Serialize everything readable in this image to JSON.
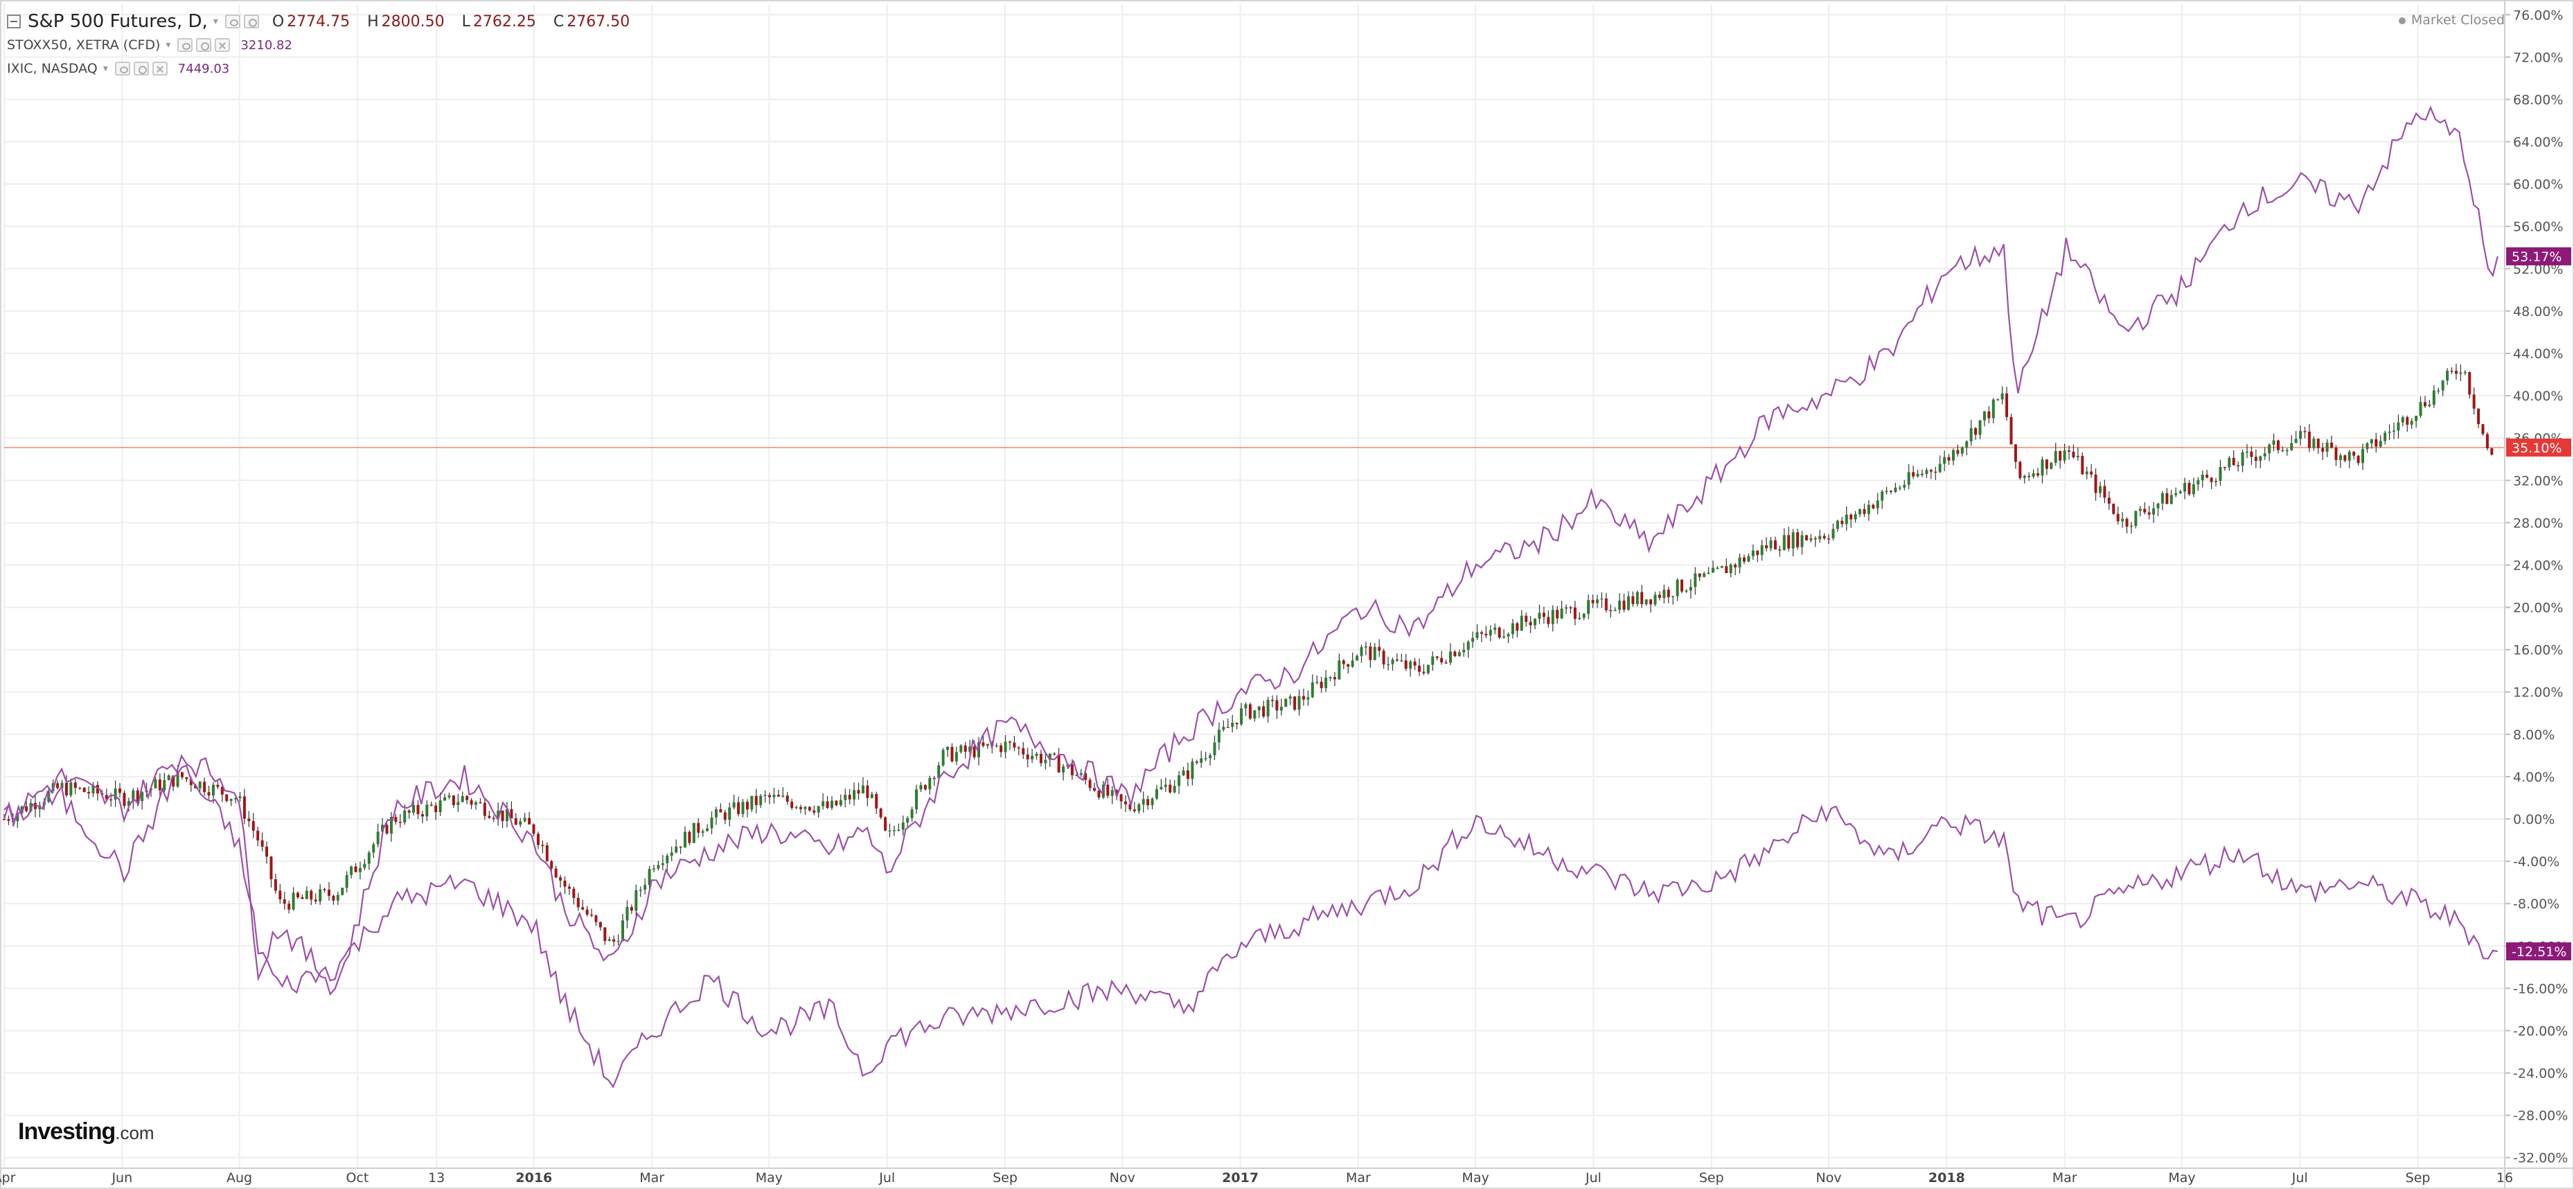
{
  "legend": {
    "main": {
      "symbol": "S&P 500 Futures, D,",
      "o_label": "O",
      "o": "2774.75",
      "h_label": "H",
      "h": "2800.50",
      "l_label": "L",
      "l": "2762.25",
      "c_label": "C",
      "c": "2767.50"
    },
    "sub1": {
      "symbol": "STOXX50, XETRA (CFD)",
      "value": "3210.82"
    },
    "sub2": {
      "symbol": "IXIC, NASDAQ",
      "value": "7449.03"
    }
  },
  "market_status": "Market Closed",
  "logo": {
    "bold": "Investing",
    "suffix": ".com"
  },
  "colors": {
    "up": "#2e7d32",
    "down": "#a31515",
    "compare": "#9c4fa8",
    "ref_line": "#f0a58a",
    "badge_sp": "#e53935",
    "badge_cmp": "#8e1a78",
    "grid": "#eeeeee"
  },
  "chart_data": {
    "type": "line",
    "title": "",
    "x_range": [
      2015.25,
      2018.79
    ],
    "y_range_pct": [
      -33,
      77
    ],
    "x_ticks": [
      {
        "label": "Apr",
        "t": 2015.25
      },
      {
        "label": "Jun",
        "t": 2015.417
      },
      {
        "label": "Aug",
        "t": 2015.583
      },
      {
        "label": "Oct",
        "t": 2015.75
      },
      {
        "label": "13",
        "t": 2015.862
      },
      {
        "label": "2016",
        "t": 2016.0,
        "bold": true
      },
      {
        "label": "Mar",
        "t": 2016.167
      },
      {
        "label": "May",
        "t": 2016.333
      },
      {
        "label": "Jul",
        "t": 2016.5
      },
      {
        "label": "Sep",
        "t": 2016.667
      },
      {
        "label": "Nov",
        "t": 2016.833
      },
      {
        "label": "2017",
        "t": 2017.0,
        "bold": true
      },
      {
        "label": "Mar",
        "t": 2017.167
      },
      {
        "label": "May",
        "t": 2017.333
      },
      {
        "label": "Jul",
        "t": 2017.5
      },
      {
        "label": "Sep",
        "t": 2017.667
      },
      {
        "label": "Nov",
        "t": 2017.833
      },
      {
        "label": "2018",
        "t": 2018.0,
        "bold": true
      },
      {
        "label": "Mar",
        "t": 2018.167
      },
      {
        "label": "May",
        "t": 2018.333
      },
      {
        "label": "Jul",
        "t": 2018.5
      },
      {
        "label": "Sep",
        "t": 2018.667
      },
      {
        "label": "16",
        "t": 2018.79
      }
    ],
    "y_ticks": [
      "76.00%",
      "72.00%",
      "68.00%",
      "64.00%",
      "60.00%",
      "56.00%",
      "52.00%",
      "48.00%",
      "44.00%",
      "40.00%",
      "36.00%",
      "32.00%",
      "28.00%",
      "24.00%",
      "20.00%",
      "16.00%",
      "12.00%",
      "8.00%",
      "4.00%",
      "0.00%",
      "-4.00%",
      "-8.00%",
      "-12.00%",
      "-16.00%",
      "-20.00%",
      "-24.00%",
      "-28.00%",
      "-32.00%"
    ],
    "reference_line_pct": 35.1,
    "badges": [
      {
        "label": "53.17%",
        "value": 53.17,
        "series": "IXIC, NASDAQ"
      },
      {
        "label": "35.10%",
        "value": 35.1,
        "series": "S&P 500 Futures"
      },
      {
        "label": "-12.51%",
        "value": -12.51,
        "series": "STOXX50, XETRA (CFD)"
      }
    ],
    "series": [
      {
        "name": "S&P 500 Futures",
        "style": "candles",
        "x": [
          2015.25,
          2015.33,
          2015.42,
          2015.5,
          2015.58,
          2015.61,
          2015.64,
          2015.72,
          2015.8,
          2015.9,
          2016.0,
          2016.04,
          2016.11,
          2016.17,
          2016.25,
          2016.33,
          2016.42,
          2016.47,
          2016.5,
          2016.58,
          2016.67,
          2016.75,
          2016.84,
          2016.92,
          2017.0,
          2017.08,
          2017.17,
          2017.25,
          2017.33,
          2017.42,
          2017.5,
          2017.58,
          2017.67,
          2017.75,
          2017.83,
          2017.92,
          2018.0,
          2018.08,
          2018.1,
          2018.17,
          2018.25,
          2018.33,
          2018.42,
          2018.5,
          2018.58,
          2018.67,
          2018.73,
          2018.77,
          2018.79
        ],
        "y": [
          0,
          3,
          2,
          4,
          2,
          -2,
          -8,
          -7,
          0,
          2,
          -1,
          -6,
          -12,
          -4,
          0,
          2,
          1,
          3,
          -2,
          6,
          7,
          5,
          1,
          4,
          10,
          11,
          16,
          14,
          17,
          19,
          20,
          21,
          23,
          26,
          27,
          31,
          34,
          40,
          32,
          35,
          28,
          31,
          34,
          36,
          34,
          39,
          43,
          34,
          35.1
        ]
      },
      {
        "name": "IXIC, NASDAQ",
        "style": "line",
        "x": [
          2015.25,
          2015.33,
          2015.42,
          2015.5,
          2015.58,
          2015.61,
          2015.64,
          2015.72,
          2015.8,
          2015.9,
          2016.0,
          2016.04,
          2016.11,
          2016.17,
          2016.25,
          2016.33,
          2016.42,
          2016.47,
          2016.5,
          2016.58,
          2016.67,
          2016.75,
          2016.84,
          2016.92,
          2017.0,
          2017.08,
          2017.17,
          2017.25,
          2017.33,
          2017.42,
          2017.5,
          2017.58,
          2017.67,
          2017.75,
          2017.83,
          2017.92,
          2018.0,
          2018.08,
          2018.1,
          2018.17,
          2018.25,
          2018.33,
          2018.42,
          2018.5,
          2018.58,
          2018.67,
          2018.73,
          2018.77,
          2018.79
        ],
        "y": [
          0,
          4,
          1,
          6,
          3,
          -14,
          -10,
          -16,
          1,
          4,
          -2,
          -8,
          -14,
          -6,
          -3,
          -1,
          -3,
          -1,
          -5,
          4,
          9,
          6,
          2,
          8,
          12,
          14,
          20,
          18,
          24,
          26,
          30,
          26,
          32,
          38,
          40,
          44,
          52,
          54,
          40,
          54,
          46,
          50,
          58,
          60,
          58,
          67,
          64,
          51,
          53.17
        ]
      },
      {
        "name": "STOXX50, XETRA (CFD)",
        "style": "line",
        "x": [
          2015.25,
          2015.33,
          2015.42,
          2015.5,
          2015.58,
          2015.61,
          2015.64,
          2015.72,
          2015.8,
          2015.9,
          2016.0,
          2016.04,
          2016.11,
          2016.17,
          2016.25,
          2016.33,
          2016.42,
          2016.47,
          2016.5,
          2016.58,
          2016.67,
          2016.75,
          2016.84,
          2016.92,
          2017.0,
          2017.08,
          2017.17,
          2017.25,
          2017.33,
          2017.42,
          2017.5,
          2017.58,
          2017.67,
          2017.75,
          2017.83,
          2017.92,
          2018.0,
          2018.08,
          2018.1,
          2018.17,
          2018.25,
          2018.33,
          2018.42,
          2018.5,
          2018.58,
          2018.67,
          2018.73,
          2018.77,
          2018.79
        ],
        "y": [
          0,
          2,
          -5,
          5,
          -2,
          -12,
          -16,
          -14,
          -8,
          -6,
          -10,
          -17,
          -25,
          -20,
          -15,
          -20,
          -18,
          -24,
          -21,
          -19,
          -18,
          -17,
          -16,
          -18,
          -12,
          -10,
          -8,
          -6,
          0,
          -3,
          -5,
          -7,
          -6,
          -3,
          1,
          -4,
          0,
          -2,
          -8,
          -10,
          -7,
          -5,
          -3,
          -7,
          -6,
          -8,
          -10,
          -13,
          -12.51
        ]
      }
    ]
  }
}
